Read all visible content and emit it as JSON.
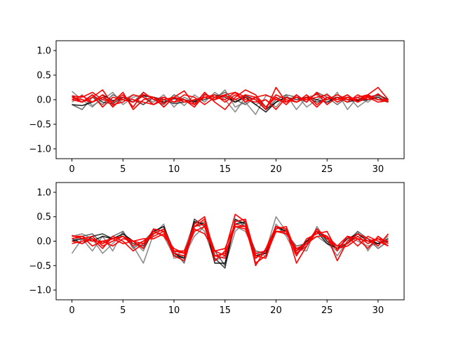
{
  "chart_data": [
    {
      "type": "line",
      "title": "",
      "xlabel": "",
      "ylabel": "",
      "xlim": [
        -1.55,
        32.55
      ],
      "ylim": [
        -1.2,
        1.2
      ],
      "xticks": [
        0,
        5,
        10,
        15,
        20,
        25,
        30
      ],
      "xtick_labels": [
        "0",
        "5",
        "10",
        "15",
        "20",
        "25",
        "30"
      ],
      "yticks": [
        -1.0,
        -0.5,
        0.0,
        0.5,
        1.0
      ],
      "ytick_labels": [
        "−1.0",
        "−0.5",
        "0.0",
        "0.5",
        "1.0"
      ],
      "grid": false,
      "x": [
        0,
        1,
        2,
        3,
        4,
        5,
        6,
        7,
        8,
        9,
        10,
        11,
        12,
        13,
        14,
        15,
        16,
        17,
        18,
        19,
        20,
        21,
        22,
        23,
        24,
        25,
        26,
        27,
        28,
        29,
        30,
        31
      ],
      "series": [
        {
          "color": "#7a7a7a",
          "values": [
            0.17,
            0.0,
            -0.15,
            0.05,
            -0.12,
            0.0,
            0.1,
            0.05,
            -0.05,
            0.1,
            -0.15,
            0.05,
            -0.05,
            0.12,
            0.0,
            0.2,
            -0.15,
            -0.05,
            -0.3,
            0.08,
            0.05,
            -0.05,
            0.1,
            -0.15,
            0.0,
            0.12,
            -0.05,
            0.1,
            -0.15,
            0.0,
            0.08,
            0.0
          ]
        },
        {
          "color": "#7a7a7a",
          "values": [
            -0.05,
            0.1,
            -0.12,
            0.0,
            0.15,
            -0.1,
            0.05,
            0.1,
            -0.1,
            0.0,
            0.05,
            -0.12,
            0.1,
            -0.05,
            0.15,
            0.0,
            -0.25,
            0.05,
            -0.1,
            0.0,
            -0.15,
            0.1,
            -0.2,
            0.05,
            0.1,
            -0.1,
            0.15,
            -0.2,
            0.05,
            -0.05,
            0.1,
            0.0
          ]
        },
        {
          "color": "#555555",
          "values": [
            -0.1,
            -0.2,
            0.05,
            -0.1,
            0.1,
            0.0,
            -0.05,
            0.15,
            0.0,
            -0.1,
            0.1,
            0.0,
            -0.15,
            0.1,
            0.05,
            0.15,
            0.0,
            -0.1,
            0.05,
            -0.2,
            0.0,
            0.1,
            0.05,
            -0.05,
            0.15,
            0.05,
            -0.1,
            0.05,
            0.0,
            0.05,
            0.0,
            -0.05
          ]
        },
        {
          "color": "#222222",
          "values": [
            0.08,
            -0.05,
            0.1,
            -0.05,
            -0.08,
            0.05,
            0.0,
            -0.1,
            0.05,
            0.0,
            -0.08,
            -0.05,
            -0.02,
            0.0,
            0.1,
            0.05,
            -0.05,
            0.08,
            0.0,
            -0.2,
            -0.05,
            0.05,
            0.0,
            0.05,
            -0.05,
            0.0,
            0.05,
            -0.05,
            0.0,
            0.05,
            0.1,
            0.0
          ]
        },
        {
          "color": "#000000",
          "values": [
            -0.1,
            -0.12,
            -0.05,
            0.1,
            -0.02,
            0.05,
            -0.05,
            0.08,
            0.05,
            -0.05,
            0.02,
            0.0,
            -0.05,
            0.05,
            0.0,
            0.1,
            -0.05,
            0.05,
            -0.1,
            -0.25,
            -0.05,
            0.05,
            -0.05,
            0.05,
            0.0,
            -0.05,
            0.05,
            0.0,
            -0.02,
            0.0,
            0.05,
            -0.05
          ]
        },
        {
          "color": "#ff0000",
          "values": [
            0.08,
            0.05,
            0.15,
            0.0,
            -0.05,
            0.1,
            -0.15,
            0.15,
            0.0,
            0.05,
            -0.05,
            0.0,
            -0.1,
            0.15,
            -0.05,
            -0.2,
            0.05,
            0.2,
            0.1,
            -0.15,
            0.05,
            -0.1,
            0.1,
            -0.05,
            0.15,
            -0.1,
            0.05,
            -0.05,
            0.1,
            0.0,
            0.12,
            -0.05
          ]
        },
        {
          "color": "#ff0000",
          "values": [
            0.05,
            -0.05,
            0.1,
            -0.15,
            0.05,
            0.0,
            -0.05,
            0.1,
            0.05,
            -0.15,
            0.05,
            0.18,
            -0.1,
            0.05,
            0.1,
            -0.05,
            0.1,
            0.0,
            -0.05,
            0.0,
            -0.2,
            0.05,
            -0.05,
            0.1,
            -0.1,
            0.05,
            0.0,
            0.1,
            -0.05,
            0.05,
            -0.05,
            -0.02
          ]
        },
        {
          "color": "#ff0000",
          "values": [
            0.0,
            -0.05,
            0.05,
            0.2,
            -0.1,
            -0.05,
            0.1,
            0.05,
            -0.1,
            0.05,
            -0.05,
            0.1,
            0.05,
            -0.1,
            0.05,
            0.0,
            0.15,
            -0.05,
            0.05,
            0.1,
            0.0,
            -0.05,
            0.05,
            0.0,
            0.05,
            0.1,
            -0.05,
            0.05,
            0.0,
            0.1,
            0.25,
            0.0
          ]
        },
        {
          "color": "#ff0000",
          "values": [
            0.0,
            0.08,
            -0.05,
            0.1,
            -0.15,
            0.05,
            0.0,
            -0.05,
            -0.1,
            0.0,
            0.05,
            -0.05,
            0.0,
            0.05,
            0.0,
            0.08,
            0.0,
            0.1,
            0.05,
            -0.15,
            0.1,
            0.0,
            -0.05,
            0.05,
            -0.15,
            0.05,
            0.0,
            0.05,
            -0.05,
            0.08,
            0.0,
            0.0
          ]
        },
        {
          "color": "#ff0000",
          "values": [
            0.05,
            0.0,
            -0.05,
            0.05,
            -0.05,
            0.15,
            -0.2,
            0.0,
            0.05,
            -0.08,
            0.05,
            0.0,
            -0.15,
            0.1,
            0.05,
            0.1,
            0.15,
            0.05,
            0.0,
            -0.2,
            0.25,
            -0.05,
            0.05,
            0.0,
            0.12,
            0.0,
            0.1,
            0.0,
            0.05,
            0.1,
            0.0,
            -0.02
          ]
        }
      ]
    },
    {
      "type": "line",
      "title": "",
      "xlabel": "",
      "ylabel": "",
      "xlim": [
        -1.55,
        32.55
      ],
      "ylim": [
        -1.2,
        1.2
      ],
      "xticks": [
        0,
        5,
        10,
        15,
        20,
        25,
        30
      ],
      "xtick_labels": [
        "0",
        "5",
        "10",
        "15",
        "20",
        "25",
        "30"
      ],
      "yticks": [
        -1.0,
        -0.5,
        0.0,
        0.5,
        1.0
      ],
      "ytick_labels": [
        "−1.0",
        "−0.5",
        "0.0",
        "0.5",
        "1.0"
      ],
      "grid": false,
      "x": [
        0,
        1,
        2,
        3,
        4,
        5,
        6,
        7,
        8,
        9,
        10,
        11,
        12,
        13,
        14,
        15,
        16,
        17,
        18,
        19,
        20,
        21,
        22,
        23,
        24,
        25,
        26,
        27,
        28,
        29,
        30,
        31
      ],
      "series": [
        {
          "color": "#7a7a7a",
          "values": [
            -0.25,
            0.05,
            -0.2,
            0.1,
            -0.2,
            0.2,
            -0.1,
            -0.45,
            0.15,
            0.35,
            -0.35,
            -0.3,
            0.1,
            0.3,
            -0.2,
            -0.5,
            0.2,
            0.4,
            -0.3,
            -0.2,
            0.5,
            0.2,
            -0.15,
            -0.2,
            0.3,
            0.0,
            -0.3,
            0.0,
            0.2,
            -0.2,
            0.1,
            -0.05
          ]
        },
        {
          "color": "#7a7a7a",
          "values": [
            0.1,
            0.15,
            0.05,
            -0.25,
            -0.05,
            0.15,
            0.0,
            -0.2,
            0.25,
            0.1,
            -0.3,
            -0.2,
            0.4,
            0.2,
            -0.4,
            -0.3,
            0.3,
            0.2,
            -0.25,
            -0.3,
            0.35,
            0.1,
            -0.3,
            0.0,
            0.1,
            -0.05,
            -0.2,
            0.1,
            0.0,
            -0.1,
            -0.05,
            0.1
          ]
        },
        {
          "color": "#555555",
          "values": [
            0.0,
            0.1,
            0.15,
            -0.05,
            0.1,
            0.2,
            -0.15,
            0.0,
            0.2,
            0.3,
            -0.2,
            -0.45,
            0.3,
            0.4,
            -0.2,
            -0.5,
            0.45,
            0.3,
            -0.2,
            -0.25,
            0.3,
            0.15,
            -0.1,
            -0.05,
            0.2,
            0.05,
            -0.1,
            -0.05,
            0.2,
            0.05,
            -0.15,
            0.0
          ]
        },
        {
          "color": "#222222",
          "values": [
            0.05,
            -0.05,
            0.1,
            0.15,
            0.05,
            0.1,
            -0.05,
            -0.1,
            0.25,
            0.2,
            -0.3,
            -0.35,
            0.45,
            0.3,
            -0.35,
            -0.55,
            0.45,
            0.35,
            -0.35,
            -0.2,
            0.3,
            0.2,
            -0.25,
            -0.05,
            0.25,
            0.0,
            -0.15,
            -0.05,
            0.15,
            0.05,
            -0.05,
            0.0
          ]
        },
        {
          "color": "#000000",
          "values": [
            0.0,
            0.05,
            0.0,
            0.1,
            0.05,
            0.15,
            0.0,
            -0.15,
            0.2,
            0.3,
            -0.25,
            -0.35,
            0.4,
            0.35,
            -0.45,
            -0.45,
            0.35,
            0.4,
            -0.3,
            -0.25,
            0.3,
            0.2,
            -0.2,
            0.0,
            0.2,
            -0.05,
            -0.15,
            0.05,
            0.15,
            0.0,
            -0.05,
            0.05
          ]
        },
        {
          "color": "#ff0000",
          "values": [
            0.12,
            0.05,
            0.1,
            -0.1,
            0.0,
            0.1,
            0.0,
            -0.15,
            0.25,
            0.2,
            -0.3,
            -0.4,
            0.3,
            0.45,
            -0.4,
            -0.2,
            0.55,
            0.4,
            -0.5,
            -0.15,
            0.3,
            0.25,
            -0.45,
            -0.1,
            0.2,
            0.1,
            -0.4,
            0.0,
            0.15,
            0.05,
            -0.1,
            0.15
          ]
        },
        {
          "color": "#ff0000",
          "values": [
            -0.05,
            0.0,
            0.05,
            -0.15,
            0.1,
            0.0,
            -0.2,
            -0.05,
            0.15,
            0.25,
            -0.2,
            -0.25,
            0.35,
            0.5,
            -0.3,
            -0.35,
            0.4,
            0.45,
            -0.3,
            -0.35,
            0.25,
            0.3,
            -0.25,
            -0.1,
            0.25,
            0.05,
            -0.15,
            -0.1,
            0.05,
            -0.15,
            0.1,
            -0.05
          ]
        },
        {
          "color": "#ff0000",
          "values": [
            0.1,
            0.1,
            -0.1,
            0.0,
            0.05,
            0.1,
            -0.1,
            0.0,
            0.1,
            0.2,
            -0.25,
            -0.3,
            0.2,
            0.3,
            -0.3,
            -0.25,
            0.3,
            0.3,
            -0.45,
            -0.3,
            0.2,
            0.2,
            -0.2,
            -0.05,
            0.1,
            0.1,
            -0.1,
            0.1,
            0.05,
            0.0,
            0.05,
            -0.1
          ]
        },
        {
          "color": "#ff0000",
          "values": [
            0.0,
            -0.05,
            0.05,
            -0.05,
            0.05,
            -0.05,
            0.0,
            0.05,
            0.05,
            0.15,
            -0.2,
            -0.2,
            0.25,
            0.15,
            -0.2,
            -0.15,
            0.35,
            0.3,
            -0.25,
            -0.2,
            0.2,
            0.15,
            -0.15,
            -0.05,
            0.25,
            0.05,
            -0.1,
            -0.05,
            0.1,
            -0.05,
            0.05,
            0.0
          ]
        },
        {
          "color": "#ff0000",
          "values": [
            0.05,
            0.1,
            0.0,
            0.0,
            -0.1,
            0.05,
            0.0,
            -0.05,
            0.2,
            0.1,
            -0.15,
            -0.25,
            0.3,
            0.35,
            -0.2,
            -0.3,
            0.3,
            0.25,
            -0.35,
            -0.2,
            0.3,
            0.25,
            -0.3,
            0.05,
            0.15,
            0.2,
            -0.2,
            0.1,
            -0.1,
            0.1,
            0.0,
            -0.1
          ]
        }
      ]
    }
  ]
}
